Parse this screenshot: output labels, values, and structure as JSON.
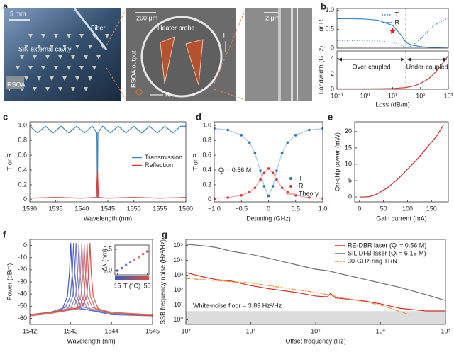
{
  "panel_a": {
    "letter": "a",
    "scale_1": "5 mm",
    "fiber": "Fiber",
    "cavity": "SiN external cavity",
    "rsoa": "RSOA",
    "scale_2": "200 μm",
    "heater": "Heater probe",
    "rsoa_output": "RSOA output",
    "t": "T",
    "r": "R",
    "scale_3": "2 μm"
  },
  "chart_data": [
    {
      "panel": "b",
      "type": "line",
      "ylabel": "T or R",
      "xscale": "log",
      "xlim": [
        0.1,
        1000
      ],
      "ylim": [
        0,
        1.05
      ],
      "yticks": [
        0,
        0.5,
        {
          "value": 1,
          "label": "1.0"
        }
      ],
      "legend": "upper center",
      "vline": 30,
      "star": {
        "x": 10,
        "y": 0.45
      },
      "x": [
        0.1,
        0.3,
        1,
        3,
        10,
        20,
        30,
        50,
        100,
        300,
        1000
      ],
      "series": [
        {
          "name": "T",
          "color": "#3a87c0",
          "style": "dotted",
          "values": [
            0.2,
            0.2,
            0.2,
            0.19,
            0.15,
            0.08,
            0.01,
            0.06,
            0.25,
            0.6,
            0.8
          ]
        },
        {
          "name": "R",
          "color": "#3a87c0",
          "values": [
            0.78,
            0.78,
            0.77,
            0.74,
            0.6,
            0.35,
            0.15,
            0.08,
            0.04,
            0.01,
            0
          ]
        }
      ]
    },
    {
      "type": "line",
      "ylabel": "Bandwidth (GHz)",
      "xlabel": "Loss (dB/m)",
      "xscale": "log",
      "xlim": [
        0.1,
        1000
      ],
      "ylim": [
        0,
        5
      ],
      "xticks": [
        {
          "value": 0.1,
          "label": "10⁻¹"
        },
        {
          "value": 1,
          "label": "10⁰"
        },
        {
          "value": 10,
          "label": "10¹"
        },
        {
          "value": 100,
          "label": "10²"
        },
        {
          "value": 1000,
          "label": "10³"
        }
      ],
      "yticks": [
        0,
        2,
        4
      ],
      "vline": 30,
      "annotations": [
        "Over-coupled",
        "Under-coupled"
      ],
      "series": [
        {
          "color": "#d63c3c",
          "x": [
            0.1,
            0.3,
            1,
            3,
            10,
            30,
            60,
            100,
            200,
            300,
            500,
            1000
          ],
          "values": [
            0.05,
            0.05,
            0.05,
            0.06,
            0.1,
            0.22,
            0.45,
            0.75,
            1.4,
            2.0,
            2.9,
            4.4
          ]
        }
      ]
    },
    {
      "panel": "c",
      "type": "line",
      "xlabel": "Wavelength (nm)",
      "ylabel": "T or R",
      "xlim": [
        1530,
        1560
      ],
      "ylim": [
        -0.03,
        1.05
      ],
      "xticks": [
        1530,
        1535,
        1540,
        1545,
        1550,
        1555,
        1560
      ],
      "yticks": [
        0,
        0.2,
        0.4,
        0.6,
        0.8,
        {
          "value": 1,
          "label": "1.0"
        }
      ],
      "legend": "center right",
      "series": [
        {
          "name": "Transmission",
          "color": "#3a87c0",
          "x": [
            1530,
            1531.5,
            1533,
            1534.5,
            1536,
            1537.5,
            1539,
            1540.5,
            1542,
            1542.9,
            1543,
            1543.1,
            1544,
            1545.5,
            1547,
            1548.5,
            1550,
            1551.5,
            1553,
            1554.5,
            1556,
            1557.5,
            1559,
            1560
          ],
          "values": [
            0.99,
            0.9,
            0.99,
            0.9,
            0.99,
            0.9,
            0.99,
            0.9,
            0.99,
            0.9,
            0.02,
            0.9,
            0.99,
            0.9,
            0.99,
            0.9,
            0.99,
            0.9,
            0.99,
            0.9,
            0.99,
            0.9,
            0.99,
            0.99
          ]
        },
        {
          "name": "Reflection",
          "color": "#d63c3c",
          "x": [
            1530,
            1535,
            1540,
            1542.8,
            1543,
            1543.2,
            1545,
            1550,
            1555,
            1560
          ],
          "values": [
            0.02,
            0.03,
            0.02,
            0.03,
            0.4,
            0.03,
            0.02,
            0.03,
            0.02,
            0.03
          ]
        }
      ]
    },
    {
      "panel": "d",
      "type": "line",
      "xlabel": "Detuning (GHz)",
      "ylabel": "T or R",
      "xlim": [
        -1,
        1
      ],
      "ylim": [
        -0.03,
        1.05
      ],
      "xticks": [
        {
          "value": -1,
          "label": "−1.0"
        },
        {
          "value": -0.5,
          "label": "−0.5"
        },
        0,
        0.5,
        {
          "value": 1,
          "label": "1.0"
        }
      ],
      "yticks": [
        0,
        0.2,
        0.4,
        0.6,
        0.8,
        {
          "value": 1,
          "label": "1.0"
        }
      ],
      "legend": "lower right",
      "annotations": [
        "Qₗ = 0.56 M"
      ],
      "x": [
        -1,
        -0.75,
        -0.5,
        -0.35,
        -0.25,
        -0.15,
        -0.08,
        0,
        0.08,
        0.15,
        0.25,
        0.35,
        0.5,
        0.75,
        1
      ],
      "series": [
        {
          "name": "T",
          "color": "#2f6fb0",
          "mark": "dots",
          "values": [
            0.96,
            0.94,
            0.87,
            0.77,
            0.63,
            0.39,
            0.18,
            0.05,
            0.18,
            0.39,
            0.63,
            0.77,
            0.87,
            0.94,
            0.96
          ]
        },
        {
          "name": "R",
          "color": "#d63c3c",
          "mark": "dots",
          "values": [
            0.016,
            0.028,
            0.058,
            0.1,
            0.16,
            0.27,
            0.36,
            0.42,
            0.36,
            0.27,
            0.16,
            0.1,
            0.058,
            0.028,
            0.016
          ]
        },
        {
          "color": "#a9cbe8",
          "values": [
            0.96,
            0.94,
            0.87,
            0.77,
            0.63,
            0.39,
            0.18,
            0.05,
            0.18,
            0.39,
            0.63,
            0.77,
            0.87,
            0.94,
            0.96
          ]
        },
        {
          "name": "Theory",
          "color": "#f2a5a5",
          "values": [
            0.016,
            0.028,
            0.058,
            0.1,
            0.16,
            0.27,
            0.36,
            0.42,
            0.36,
            0.27,
            0.16,
            0.1,
            0.058,
            0.028,
            0.016
          ]
        }
      ]
    },
    {
      "panel": "e",
      "type": "line",
      "xlabel": "Gain current (mA)",
      "ylabel": "On-chip power (mW)",
      "xlim": [
        -10,
        185
      ],
      "ylim": [
        -1.5,
        23
      ],
      "xticks": [
        0,
        50,
        100,
        150
      ],
      "yticks": [
        0,
        5,
        10,
        15,
        20
      ],
      "series": [
        {
          "color": "#c62828",
          "x": [
            0,
            10,
            20,
            30,
            40,
            60,
            80,
            100,
            120,
            140,
            160,
            175
          ],
          "values": [
            0,
            0,
            0.1,
            0.5,
            1.2,
            3,
            5.5,
            8.5,
            11.5,
            15,
            18.5,
            22
          ]
        }
      ]
    },
    {
      "panel": "f",
      "type": "line",
      "xlabel": "Wavelength (nm)",
      "ylabel": "Power (dBm)",
      "xlim": [
        1542,
        1545
      ],
      "ylim": [
        -65,
        5
      ],
      "xticks": [
        1542,
        1543,
        1544,
        1545
      ],
      "yticks": [
        -60,
        -50,
        -40,
        -30,
        -20,
        -10,
        0
      ],
      "series": [
        {
          "color": "#3b5bc4",
          "x": [
            1542,
            1542.5,
            1542.8,
            1542.92,
            1542.97,
            1543,
            1543.03,
            1543.08,
            1543.2,
            1544,
            1545
          ],
          "values": [
            -58,
            -56,
            -52,
            -42,
            -22,
            2,
            -22,
            -42,
            -52,
            -56,
            -58
          ]
        },
        {
          "color": "#5b6fcc",
          "x": [
            1542,
            1542.5,
            1542.87,
            1542.99,
            1543.04,
            1543.07,
            1543.1,
            1543.15,
            1543.27,
            1544,
            1545
          ],
          "values": [
            -57,
            -55,
            -51,
            -42,
            -22,
            2,
            -22,
            -42,
            -52,
            -57,
            -58
          ]
        },
        {
          "color": "#7a80c8",
          "x": [
            1542,
            1542.5,
            1542.93,
            1543.05,
            1543.1,
            1543.13,
            1543.16,
            1543.21,
            1543.33,
            1544,
            1545
          ],
          "values": [
            -58,
            -56,
            -52,
            -42,
            -22,
            2,
            -22,
            -42,
            -51,
            -56,
            -57
          ]
        },
        {
          "color": "#9a86b8",
          "x": [
            1542,
            1542.5,
            1543,
            1543.12,
            1543.17,
            1543.2,
            1543.23,
            1543.28,
            1543.4,
            1544,
            1545
          ],
          "values": [
            -57,
            -56,
            -52,
            -42,
            -23,
            1,
            -23,
            -42,
            -52,
            -55,
            -58
          ]
        },
        {
          "color": "#b8849f",
          "x": [
            1542,
            1542.5,
            1543.07,
            1543.19,
            1543.24,
            1543.27,
            1543.3,
            1543.35,
            1543.47,
            1544,
            1545
          ],
          "values": [
            -58,
            -55,
            -51,
            -42,
            -22,
            2,
            -22,
            -42,
            -52,
            -56,
            -57
          ]
        },
        {
          "color": "#cc7a84",
          "x": [
            1542,
            1542.5,
            1543.13,
            1543.25,
            1543.3,
            1543.33,
            1543.36,
            1543.41,
            1543.53,
            1544,
            1545
          ],
          "values": [
            -57,
            -56,
            -52,
            -42,
            -23,
            1,
            -23,
            -42,
            -51,
            -56,
            -58
          ]
        },
        {
          "color": "#d86a64",
          "x": [
            1542,
            1542.5,
            1543.2,
            1543.32,
            1543.37,
            1543.4,
            1543.43,
            1543.48,
            1543.6,
            1544,
            1545
          ],
          "values": [
            -58,
            -56,
            -52,
            -42,
            -22,
            2,
            -22,
            -42,
            -52,
            -55,
            -57
          ]
        },
        {
          "color": "#d9503f",
          "x": [
            1542,
            1542.5,
            1543.27,
            1543.39,
            1543.44,
            1543.47,
            1543.5,
            1543.55,
            1543.67,
            1544,
            1545
          ],
          "values": [
            -57,
            -55,
            -51,
            -42,
            -22,
            2,
            -22,
            -42,
            -52,
            -56,
            -58
          ]
        }
      ]
    },
    {
      "type": "scatter",
      "xlabel": "T (°C)",
      "ylabel": "Δλ (nm)",
      "xlim": [
        12,
        52
      ],
      "ylim": [
        -0.1,
        0.6
      ],
      "xticks": [
        15,
        50
      ],
      "yticks": [
        {
          "value": 0,
          "label": "0.0"
        },
        0.5
      ],
      "series": [
        {
          "mark": "dots",
          "color": "#3b5bc4",
          "x": [
            15,
            20,
            25,
            30,
            35,
            40,
            45,
            50
          ],
          "values": [
            0,
            0.06,
            0.13,
            0.19,
            0.26,
            0.32,
            0.39,
            0.45
          ],
          "colors": [
            "#3b5bc4",
            "#5b6fcc",
            "#7a80c8",
            "#9a86b8",
            "#b8849f",
            "#cc7a84",
            "#d86a64",
            "#d9503f"
          ]
        }
      ]
    },
    {
      "panel": "g",
      "type": "line",
      "xlabel": "Offset frequency (Hz)",
      "ylabel": "SSB frequency noise (Hz²/Hz)",
      "xscale": "log",
      "yscale": "log",
      "xlim": [
        1000,
        10000000
      ],
      "ylim": [
        0.5,
        250000
      ],
      "xticks": [
        {
          "value": 1000,
          "label": "10³"
        },
        {
          "value": 10000,
          "label": "10⁴"
        },
        {
          "value": 100000,
          "label": "10⁵"
        },
        {
          "value": 1000000,
          "label": "10⁶"
        },
        {
          "value": 10000000,
          "label": "10⁷"
        }
      ],
      "yticks": [
        {
          "value": 1,
          "label": "10⁰"
        },
        {
          "value": 10,
          "label": "10¹"
        },
        {
          "value": 100,
          "label": "10²"
        },
        {
          "value": 1000,
          "label": "10³"
        },
        {
          "value": 10000,
          "label": "10⁴"
        },
        {
          "value": 100000,
          "label": "10⁵"
        }
      ],
      "legend": "upper right",
      "floor": 3.89,
      "annotations": [
        "White-noise floor = 3.89 Hz²/Hz"
      ],
      "x": [
        1000,
        2000,
        3000,
        5000,
        10000,
        20000,
        50000,
        100000,
        150000,
        170000,
        200000,
        500000,
        1000000,
        2000000,
        5000000,
        10000000
      ],
      "series": [
        {
          "name": "RE-DBR laser (Qₗ = 0.56 M)",
          "color": "#d62c2c",
          "values": [
            1500,
            700,
            500,
            400,
            200,
            120,
            70,
            40,
            35,
            60,
            30,
            20,
            12,
            6,
            4,
            4
          ]
        },
        {
          "name": "SIL DFB laser (Qₗ = 6.19 M)",
          "color": "#707070",
          "values": [
            120000,
            90000,
            70000,
            40000,
            25000,
            13000,
            5000,
            2500,
            2000,
            1800,
            1500,
            600,
            300,
            150,
            50,
            20
          ]
        },
        {
          "name": "30-GHz-ring TRN",
          "color": "#e8922a",
          "style": "dashdot",
          "x": [
            1000,
            10000,
            100000,
            1000000,
            3000000
          ],
          "values": [
            600,
            300,
            70,
            10,
            2
          ]
        }
      ]
    }
  ]
}
